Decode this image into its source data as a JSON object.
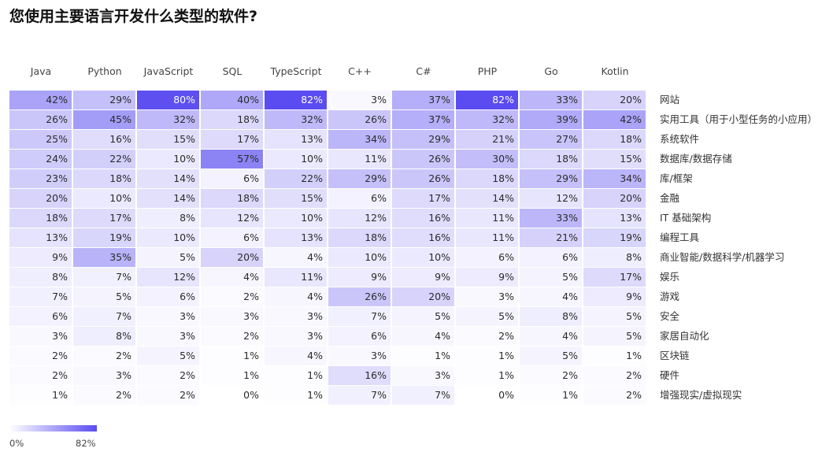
{
  "title": "您使用主要语言开发什么类型的软件?",
  "chart_data": {
    "type": "heatmap",
    "title": "您使用主要语言开发什么类型的软件?",
    "columns": [
      "Java",
      "Python",
      "JavaScript",
      "SQL",
      "TypeScript",
      "C++",
      "C#",
      "PHP",
      "Go",
      "Kotlin"
    ],
    "rows": [
      {
        "label": "网站",
        "values": [
          42,
          29,
          80,
          40,
          82,
          3,
          37,
          82,
          33,
          20
        ]
      },
      {
        "label": "实用工具（用于小型任务的小应用）",
        "values": [
          26,
          45,
          32,
          18,
          32,
          26,
          37,
          32,
          39,
          42
        ]
      },
      {
        "label": "系统软件",
        "values": [
          25,
          16,
          15,
          17,
          13,
          34,
          29,
          21,
          27,
          18
        ]
      },
      {
        "label": "数据库/数据存储",
        "values": [
          24,
          22,
          10,
          57,
          10,
          11,
          26,
          30,
          18,
          15
        ]
      },
      {
        "label": "库/框架",
        "values": [
          23,
          18,
          14,
          6,
          22,
          29,
          26,
          18,
          29,
          34
        ]
      },
      {
        "label": "金融",
        "values": [
          20,
          10,
          14,
          18,
          15,
          6,
          17,
          14,
          12,
          20
        ]
      },
      {
        "label": "IT 基础架构",
        "values": [
          18,
          17,
          8,
          12,
          10,
          12,
          16,
          11,
          33,
          13
        ]
      },
      {
        "label": "编程工具",
        "values": [
          13,
          19,
          10,
          6,
          13,
          18,
          16,
          11,
          21,
          19
        ]
      },
      {
        "label": "商业智能/数据科学/机器学习",
        "values": [
          9,
          35,
          5,
          20,
          4,
          10,
          10,
          6,
          6,
          8
        ]
      },
      {
        "label": "娱乐",
        "values": [
          8,
          7,
          12,
          4,
          11,
          9,
          9,
          9,
          5,
          17
        ]
      },
      {
        "label": "游戏",
        "values": [
          7,
          5,
          6,
          2,
          4,
          26,
          20,
          3,
          4,
          9
        ]
      },
      {
        "label": "安全",
        "values": [
          6,
          7,
          3,
          3,
          3,
          7,
          5,
          5,
          8,
          5
        ]
      },
      {
        "label": "家居自动化",
        "values": [
          3,
          8,
          3,
          2,
          3,
          6,
          4,
          2,
          4,
          5
        ]
      },
      {
        "label": "区块链",
        "values": [
          2,
          2,
          5,
          1,
          4,
          3,
          1,
          1,
          5,
          1
        ]
      },
      {
        "label": "硬件",
        "values": [
          2,
          3,
          2,
          1,
          1,
          16,
          3,
          1,
          2,
          2
        ]
      },
      {
        "label": "增强现实/虚拟现实",
        "values": [
          1,
          2,
          2,
          0,
          1,
          7,
          7,
          0,
          1,
          2
        ]
      }
    ],
    "value_suffix": "%",
    "color_scale": {
      "min": 0,
      "max": 82,
      "min_label": "0%",
      "max_label": "82%",
      "low_color": "#ffffff",
      "high_color": "#5a4cf0"
    }
  }
}
